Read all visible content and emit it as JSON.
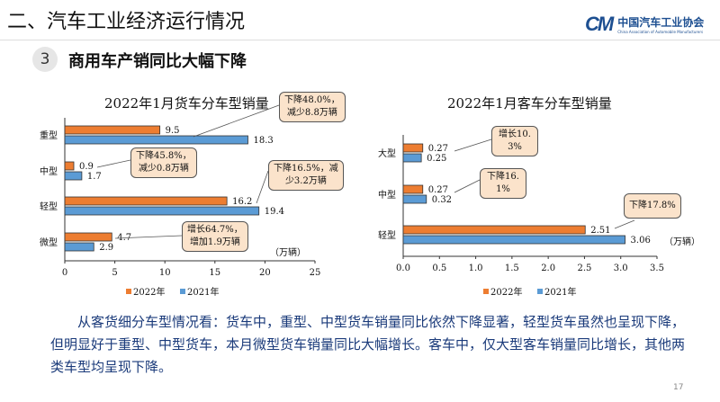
{
  "header": {
    "title": "二、汽车工业经济运行情况",
    "logo_cn": "中国汽车工业协会",
    "logo_en": "China Association of Automobile Manufacturers",
    "section_number": "3",
    "section_title": "商用车产销同比大幅下降"
  },
  "colors": {
    "series_2022": "#ed7d31",
    "series_2021": "#5b9bd5",
    "callout_fill": "#fbe3cb",
    "text_blue": "#1a3a7a"
  },
  "chart_data": [
    {
      "type": "bar",
      "orientation": "horizontal",
      "title": "2022年1月货车分车型销量",
      "unit": "（万辆）",
      "categories": [
        "重型",
        "中型",
        "轻型",
        "微型"
      ],
      "series": [
        {
          "name": "2022年",
          "values": [
            9.5,
            0.9,
            16.2,
            4.7
          ],
          "labels": [
            "9.5",
            "0.9",
            "16.2",
            "4.7"
          ]
        },
        {
          "name": "2021年",
          "values": [
            18.3,
            1.7,
            19.4,
            2.9
          ],
          "labels": [
            "18.3",
            "1.7",
            "19.4",
            "2.9"
          ]
        }
      ],
      "xlim": [
        0,
        25
      ],
      "xticks": [
        "0",
        "5",
        "10",
        "15",
        "20",
        "25"
      ],
      "legend": "bottom",
      "annotations": [
        "下降48.0%，减少8.8万辆",
        "下降45.8%，减少0.8万辆",
        "下降16.5%，减少3.2万辆",
        "增长64.7%，增加1.9万辆"
      ]
    },
    {
      "type": "bar",
      "orientation": "horizontal",
      "title": "2022年1月客车分车型销量",
      "unit": "（万辆）",
      "categories": [
        "大型",
        "中型",
        "轻型"
      ],
      "series": [
        {
          "name": "2022年",
          "values": [
            0.27,
            0.27,
            2.51
          ],
          "labels": [
            "0.27",
            "0.27",
            "2.51"
          ]
        },
        {
          "name": "2021年",
          "values": [
            0.25,
            0.32,
            3.06
          ],
          "labels": [
            "0.25",
            "0.32",
            "3.06"
          ]
        }
      ],
      "xlim": [
        0,
        3.5
      ],
      "xticks": [
        "0.0",
        "0.5",
        "1.0",
        "1.5",
        "2.0",
        "2.5",
        "3.0",
        "3.5"
      ],
      "legend": "bottom",
      "annotations": [
        "增长10.3%",
        "下降16.1%",
        "下降17.8%"
      ]
    }
  ],
  "callouts_left": [
    [
      "下降48.0%，",
      "减少8.8万辆"
    ],
    [
      "下降45.8%，",
      "减少0.8万辆"
    ],
    [
      "下降16.5%，减",
      "少3.2万辆"
    ],
    [
      "增长64.7%，",
      "增加1.9万辆"
    ]
  ],
  "callouts_right": [
    [
      "增长",
      "10.3%"
    ],
    [
      "下降",
      "16.1%"
    ],
    [
      "下降17.8%",
      ""
    ]
  ],
  "paragraph": "从客货细分车型情况看：货车中，重型、中型货车销量同比依然下降显著，轻型货车虽然也呈现下降，但明显好于重型、中型货车，本月微型货车销量同比大幅增长。客车中，仅大型客车销量同比增长，其他两类车型均呈现下降。",
  "page_number": "17"
}
